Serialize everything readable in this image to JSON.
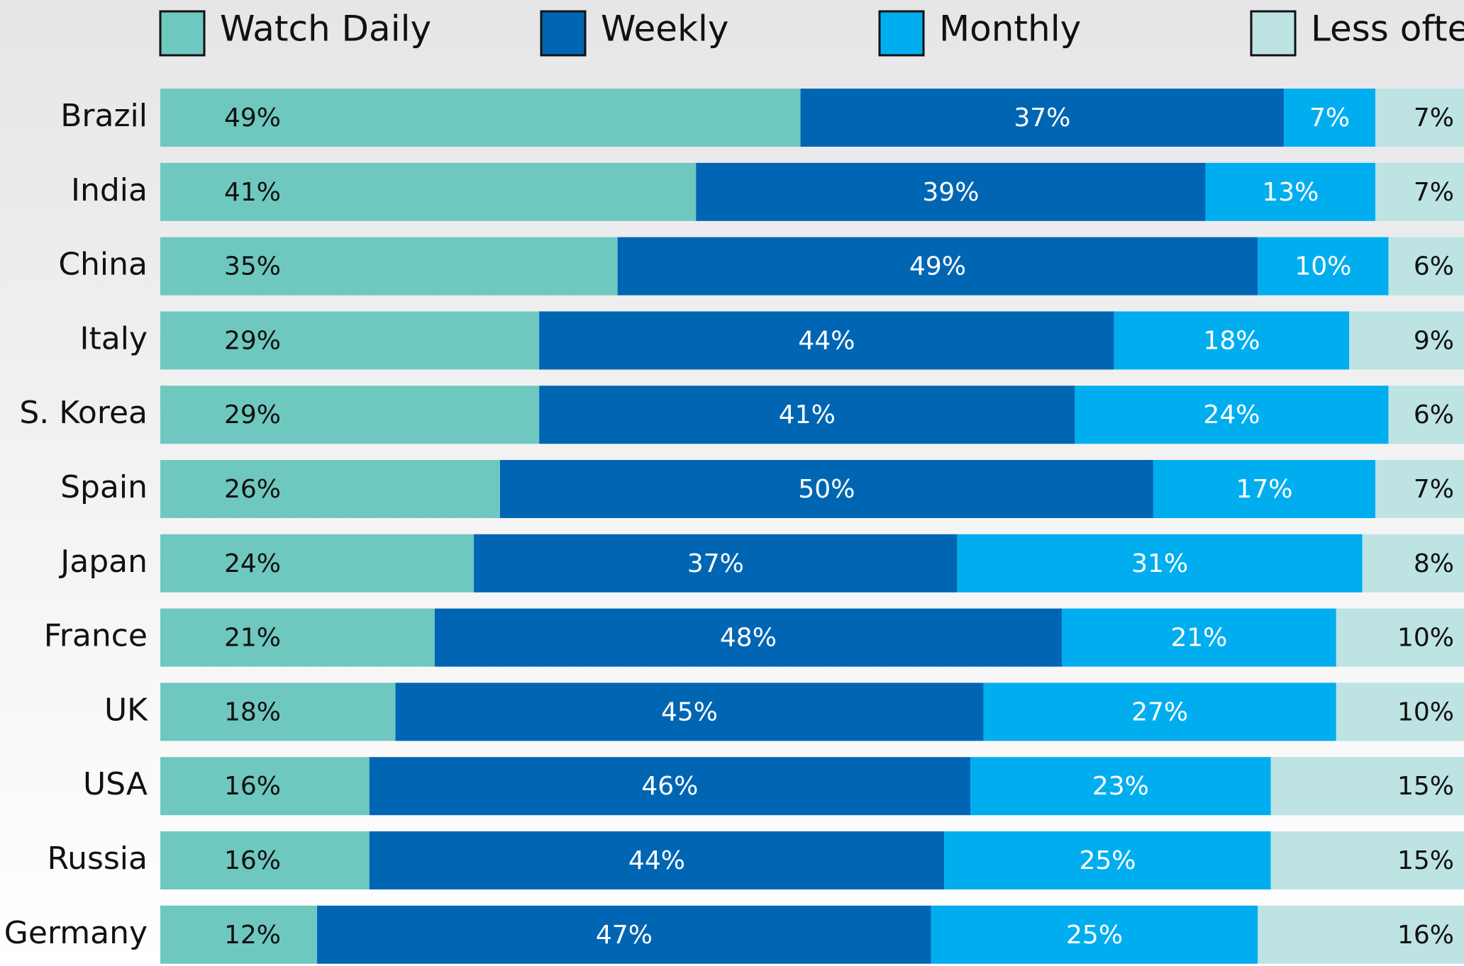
{
  "chart_data": {
    "type": "stacked_bar_horizontal",
    "categories": [
      "Brazil",
      "India",
      "China",
      "Italy",
      "S. Korea",
      "Spain",
      "Japan",
      "France",
      "UK",
      "USA",
      "Russia",
      "Germany"
    ],
    "series": [
      {
        "name": "Watch Daily",
        "color": "#6fc8bf",
        "values": [
          49,
          41,
          35,
          29,
          29,
          26,
          24,
          21,
          18,
          16,
          16,
          12
        ],
        "value_labels": [
          "49%",
          "41%",
          "35%",
          "29%",
          "29%",
          "26%",
          "24%",
          "21%",
          "18%",
          "16%",
          "16%",
          "12%"
        ]
      },
      {
        "name": "Weekly",
        "color": "#0066b3",
        "values": [
          37,
          39,
          49,
          44,
          41,
          50,
          37,
          48,
          45,
          46,
          44,
          47
        ],
        "value_labels": [
          "37%",
          "39%",
          "49%",
          "44%",
          "41%",
          "50%",
          "37%",
          "48%",
          "45%",
          "46%",
          "44%",
          "47%"
        ]
      },
      {
        "name": "Monthly",
        "color": "#00aeef",
        "values": [
          7,
          13,
          10,
          18,
          24,
          17,
          31,
          21,
          27,
          23,
          25,
          25
        ],
        "value_labels": [
          "7%",
          "13%",
          "10%",
          "18%",
          "24%",
          "17%",
          "31%",
          "21%",
          "27%",
          "23%",
          "25%",
          "25%"
        ]
      },
      {
        "name": "Less often",
        "color": "#bde3e3",
        "values": [
          7,
          7,
          6,
          9,
          6,
          7,
          8,
          10,
          10,
          15,
          15,
          16
        ],
        "value_labels": [
          "7%",
          "7%",
          "6%",
          "9%",
          "6%",
          "7%",
          "8%",
          "10%",
          "10%",
          "15%",
          "15%",
          "16%"
        ]
      }
    ],
    "xlim": [
      0,
      100
    ]
  }
}
